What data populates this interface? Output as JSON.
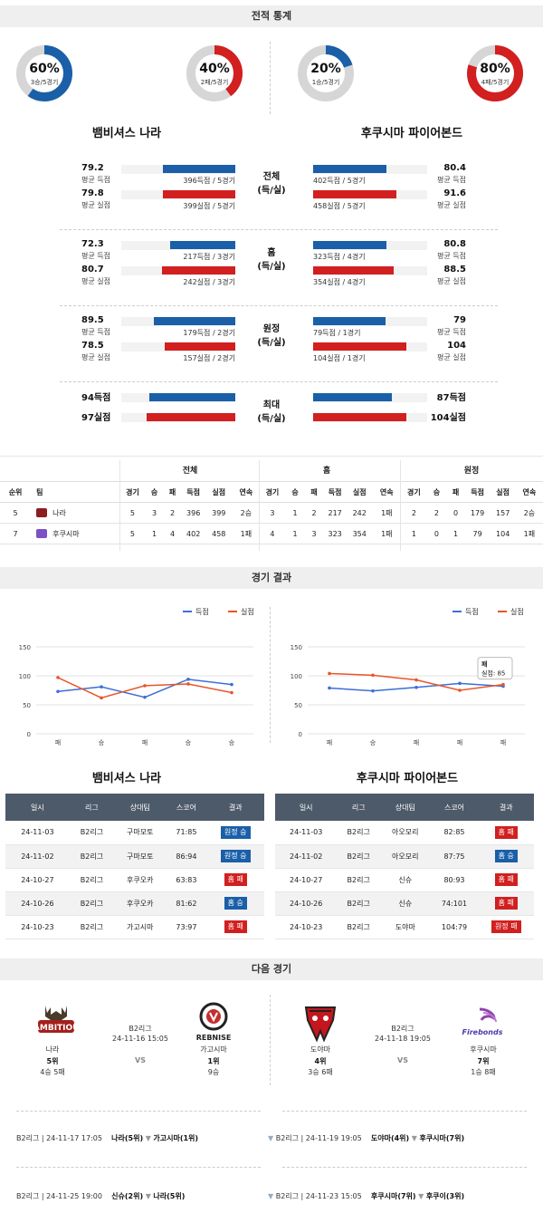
{
  "sections": {
    "stats": "전적 통계",
    "results": "경기 결과",
    "next": "다음 경기"
  },
  "donuts": [
    {
      "pct": "60%",
      "sub": "3승/5경기",
      "fraction": 0.6,
      "color": "#1a5fa8"
    },
    {
      "pct": "40%",
      "sub": "2패/5경기",
      "fraction": 0.4,
      "color": "#d21f1f"
    },
    {
      "pct": "20%",
      "sub": "1승/5경기",
      "fraction": 0.2,
      "color": "#1a5fa8"
    },
    {
      "pct": "80%",
      "sub": "4패/5경기",
      "fraction": 0.8,
      "color": "#d21f1f"
    }
  ],
  "teams": {
    "left": "뱀비셔스 나라",
    "right": "후쿠시마 파이어본드"
  },
  "compare": [
    {
      "label": "전체\n(득/실)",
      "left": [
        {
          "v": "79.2",
          "l": "평균 득점",
          "t": "396득점 / 5경기",
          "f": 0.53,
          "c": "blue"
        },
        {
          "v": "79.8",
          "l": "평균 실점",
          "t": "399실점 / 5경기",
          "f": 0.53,
          "c": "red"
        }
      ],
      "right": [
        {
          "v": "80.4",
          "l": "평균 득점",
          "t": "402득점 / 5경기",
          "f": 0.54,
          "c": "blue"
        },
        {
          "v": "91.6",
          "l": "평균 실점",
          "t": "458실점 / 5경기",
          "f": 0.61,
          "c": "red"
        }
      ]
    },
    {
      "label": "홈\n(득/실)",
      "left": [
        {
          "v": "72.3",
          "l": "평균 득점",
          "t": "217득점 / 3경기",
          "f": 0.48,
          "c": "blue"
        },
        {
          "v": "80.7",
          "l": "평균 실점",
          "t": "242실점 / 3경기",
          "f": 0.54,
          "c": "red"
        }
      ],
      "right": [
        {
          "v": "80.8",
          "l": "평균 득점",
          "t": "323득점 / 4경기",
          "f": 0.54,
          "c": "blue"
        },
        {
          "v": "88.5",
          "l": "평균 실점",
          "t": "354실점 / 4경기",
          "f": 0.59,
          "c": "red"
        }
      ]
    },
    {
      "label": "원정\n(득/실)",
      "left": [
        {
          "v": "89.5",
          "l": "평균 득점",
          "t": "179득점 / 2경기",
          "f": 0.6,
          "c": "blue"
        },
        {
          "v": "78.5",
          "l": "평균 실점",
          "t": "157실점 / 2경기",
          "f": 0.52,
          "c": "red"
        }
      ],
      "right": [
        {
          "v": "79",
          "l": "평균 득점",
          "t": "79득점 / 1경기",
          "f": 0.53,
          "c": "blue"
        },
        {
          "v": "104",
          "l": "평균 실점",
          "t": "104실점 / 1경기",
          "f": 0.69,
          "c": "red"
        }
      ]
    },
    {
      "label": "최대\n(득/실)",
      "left": [
        {
          "v": "94득점",
          "l": "",
          "t": "",
          "f": 0.63,
          "c": "blue"
        },
        {
          "v": "97실점",
          "l": "",
          "t": "",
          "f": 0.65,
          "c": "red"
        }
      ],
      "right": [
        {
          "v": "87득점",
          "l": "",
          "t": "",
          "f": 0.58,
          "c": "blue"
        },
        {
          "v": "104실점",
          "l": "",
          "t": "",
          "f": 0.69,
          "c": "red"
        }
      ]
    }
  ],
  "standings": {
    "groups": [
      "전체",
      "홈",
      "원정"
    ],
    "headers": [
      "순위",
      "팀",
      "경기",
      "승",
      "패",
      "득점",
      "실점",
      "연속",
      "경기",
      "승",
      "패",
      "득점",
      "실점",
      "연속",
      "경기",
      "승",
      "패",
      "득점",
      "실점",
      "연속"
    ],
    "rows": [
      [
        "5",
        "나라",
        "5",
        "3",
        "2",
        "396",
        "399",
        "2승",
        "3",
        "1",
        "2",
        "217",
        "242",
        "1패",
        "2",
        "2",
        "0",
        "179",
        "157",
        "2승"
      ],
      [
        "7",
        "후쿠시마",
        "5",
        "1",
        "4",
        "402",
        "458",
        "1패",
        "4",
        "1",
        "3",
        "323",
        "354",
        "1패",
        "1",
        "0",
        "1",
        "79",
        "104",
        "1패"
      ]
    ]
  },
  "chart_data": [
    {
      "type": "line",
      "legend": [
        "득점",
        "실점"
      ],
      "categories": [
        "패",
        "승",
        "패",
        "승",
        "승"
      ],
      "ylim": [
        0,
        150
      ],
      "yticks": [
        0,
        50,
        100,
        150
      ],
      "series": [
        {
          "name": "득점",
          "color": "#3b6fd6",
          "values": [
            73,
            81,
            63,
            94,
            85
          ]
        },
        {
          "name": "실점",
          "color": "#e8562a",
          "values": [
            97,
            62,
            83,
            86,
            71
          ]
        }
      ]
    },
    {
      "type": "line",
      "legend": [
        "득점",
        "실점"
      ],
      "categories": [
        "패",
        "승",
        "패",
        "패",
        "패"
      ],
      "ylim": [
        0,
        150
      ],
      "yticks": [
        0,
        50,
        100,
        150
      ],
      "series": [
        {
          "name": "득점",
          "color": "#3b6fd6",
          "values": [
            79,
            74,
            80,
            87,
            82
          ]
        },
        {
          "name": "실점",
          "color": "#e8562a",
          "values": [
            104,
            101,
            93,
            75,
            85
          ]
        }
      ],
      "tooltip": {
        "title": "패",
        "text": "실점: 85"
      }
    }
  ],
  "results": {
    "headers": [
      "일시",
      "리그",
      "상대팀",
      "스코어",
      "결과"
    ],
    "left": [
      [
        "24-11-03",
        "B2리그",
        "구마모토",
        "71:85",
        "원정 승",
        "blue"
      ],
      [
        "24-11-02",
        "B2리그",
        "구마모토",
        "86:94",
        "원정 승",
        "blue"
      ],
      [
        "24-10-27",
        "B2리그",
        "후쿠오카",
        "63:83",
        "홈 패",
        "red"
      ],
      [
        "24-10-26",
        "B2리그",
        "후쿠오카",
        "81:62",
        "홈 승",
        "blue"
      ],
      [
        "24-10-23",
        "B2리그",
        "가고시마",
        "73:97",
        "홈 패",
        "red"
      ]
    ],
    "right": [
      [
        "24-11-03",
        "B2리그",
        "아오모리",
        "82:85",
        "홈 패",
        "red"
      ],
      [
        "24-11-02",
        "B2리그",
        "아오모리",
        "87:75",
        "홈 승",
        "blue"
      ],
      [
        "24-10-27",
        "B2리그",
        "신슈",
        "80:93",
        "홈 패",
        "red"
      ],
      [
        "24-10-26",
        "B2리그",
        "신슈",
        "74:101",
        "홈 패",
        "red"
      ],
      [
        "24-10-23",
        "B2리그",
        "도야마",
        "104:79",
        "원정 패",
        "red"
      ]
    ]
  },
  "next": [
    {
      "league": "B2리그",
      "date": "24-11-16 15:05",
      "vs": "VS",
      "home": {
        "name": "나라",
        "rank": "5위",
        "rec": "4승 5패"
      },
      "away": {
        "name": "가고시마",
        "rank": "1위",
        "rec": "9승"
      }
    },
    {
      "league": "B2리그",
      "date": "24-11-18 19:05",
      "vs": "VS",
      "home": {
        "name": "도야마",
        "rank": "4위",
        "rec": "3승 6패"
      },
      "away": {
        "name": "후쿠시마",
        "rank": "7위",
        "rec": "1승 8패"
      }
    }
  ],
  "schedule": [
    {
      "info": "B2리그 | 24-11-17 17:05",
      "a": "나라(5위)",
      "b": "가고시마(1위)"
    },
    {
      "info": "B2리그 | 24-11-19 19:05",
      "a": "도야마(4위)",
      "b": "후쿠시마(7위)"
    },
    {
      "info": "B2리그 | 24-11-25 19:00",
      "a": "신슈(2위)",
      "b": "나라(5위)"
    },
    {
      "info": "B2리그 | 24-11-23 15:05",
      "a": "후쿠시마(7위)",
      "b": "후쿠이(3위)"
    }
  ]
}
